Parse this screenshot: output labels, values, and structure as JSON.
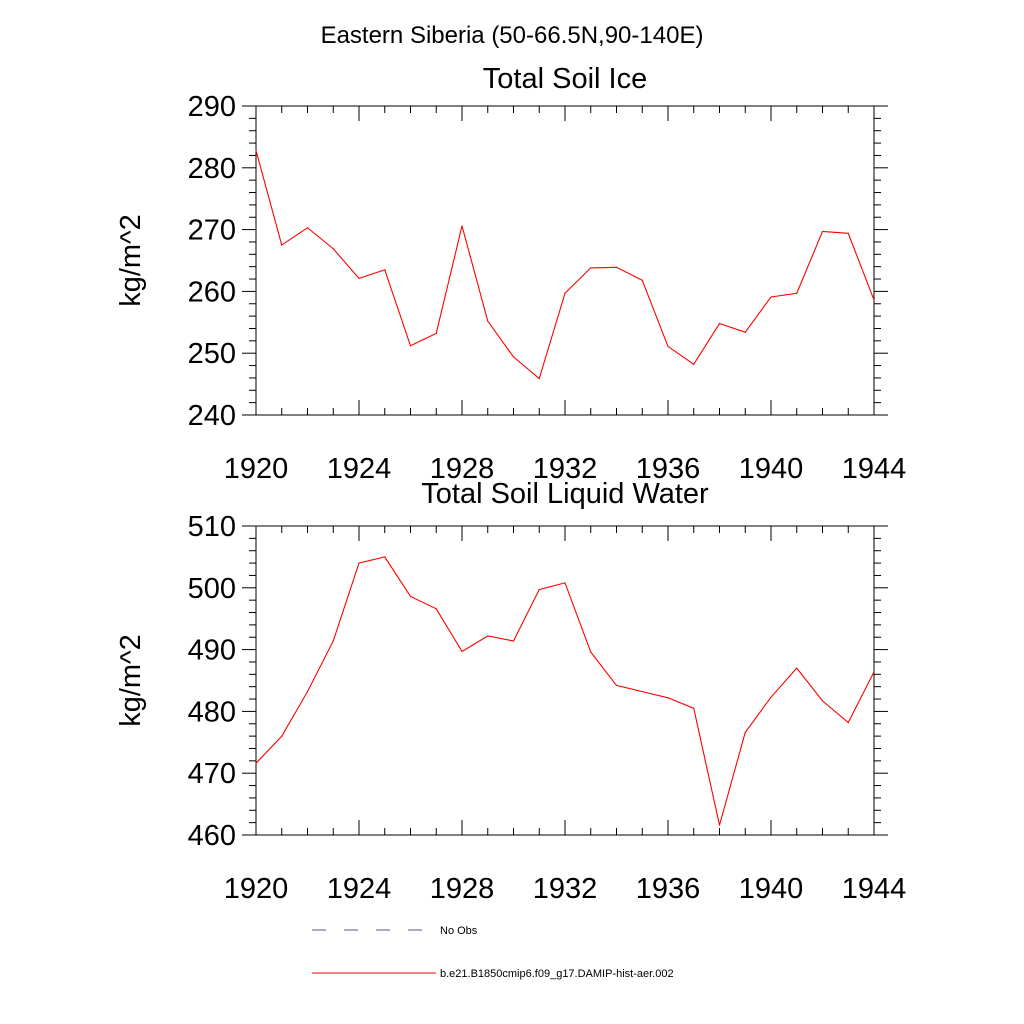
{
  "figure_title": "Eastern Siberia (50-66.5N,90-140E)",
  "colors": {
    "model_line": "#ff0000",
    "obs_line": "#5a5a8c",
    "axes": "#000000",
    "background": "#ffffff"
  },
  "legend": [
    {
      "label": "No Obs",
      "style": "dashed",
      "color": "#5a5a8c"
    },
    {
      "label": "b.e21.B1850cmip6.f09_g17.DAMIP-hist-aer.002",
      "style": "solid",
      "color": "#ff0000"
    }
  ],
  "chart_data": [
    {
      "type": "line",
      "title": "Total Soil Ice",
      "xlabel": "",
      "ylabel": "kg/m^2",
      "xlim": [
        1920,
        1944
      ],
      "ylim": [
        240,
        290
      ],
      "xticks": [
        1920,
        1924,
        1928,
        1932,
        1936,
        1940,
        1944
      ],
      "yticks": [
        240,
        250,
        260,
        270,
        280,
        290
      ],
      "grid": false,
      "series": [
        {
          "name": "b.e21.B1850cmip6.f09_g17.DAMIP-hist-aer.002",
          "color": "#ff0000",
          "x": [
            1920,
            1921,
            1922,
            1923,
            1924,
            1925,
            1926,
            1927,
            1928,
            1929,
            1930,
            1931,
            1932,
            1933,
            1934,
            1935,
            1936,
            1937,
            1938,
            1939,
            1940,
            1941,
            1942,
            1943,
            1944
          ],
          "y": [
            282.8,
            267.5,
            270.3,
            266.9,
            262.1,
            263.5,
            251.2,
            253.2,
            270.6,
            255.2,
            249.4,
            245.9,
            259.7,
            263.8,
            263.9,
            261.8,
            251.1,
            248.2,
            254.8,
            253.4,
            259.1,
            259.7,
            269.7,
            269.4,
            258.6
          ]
        }
      ]
    },
    {
      "type": "line",
      "title": "Total Soil Liquid Water",
      "xlabel": "",
      "ylabel": "kg/m^2",
      "xlim": [
        1920,
        1944
      ],
      "ylim": [
        460,
        510
      ],
      "xticks": [
        1920,
        1924,
        1928,
        1932,
        1936,
        1940,
        1944
      ],
      "yticks": [
        460,
        470,
        480,
        490,
        500,
        510
      ],
      "grid": false,
      "series": [
        {
          "name": "b.e21.B1850cmip6.f09_g17.DAMIP-hist-aer.002",
          "color": "#ff0000",
          "x": [
            1920,
            1921,
            1922,
            1923,
            1924,
            1925,
            1926,
            1927,
            1928,
            1929,
            1930,
            1931,
            1932,
            1933,
            1934,
            1935,
            1936,
            1937,
            1938,
            1939,
            1940,
            1941,
            1942,
            1943,
            1944
          ],
          "y": [
            471.6,
            476.0,
            483.2,
            491.4,
            504.0,
            505.0,
            498.6,
            496.6,
            489.7,
            492.2,
            491.4,
            499.7,
            500.8,
            489.6,
            484.2,
            483.2,
            482.2,
            480.5,
            461.6,
            476.6,
            482.3,
            487.0,
            481.7,
            478.2,
            486.4
          ]
        }
      ]
    }
  ]
}
